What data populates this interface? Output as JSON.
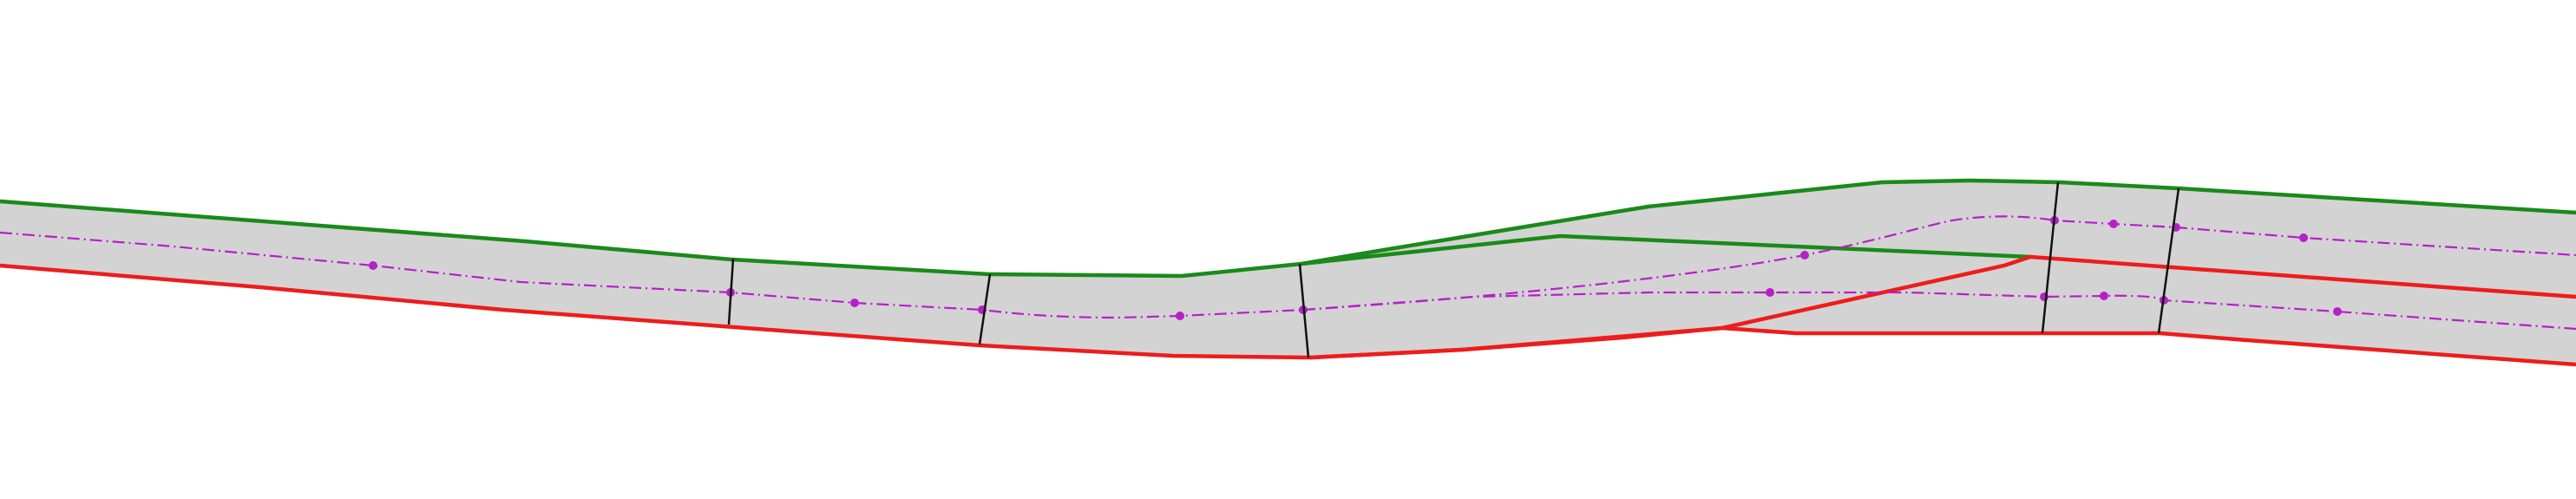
{
  "diagram": {
    "kind": "road lane map",
    "background_color": "#ffffff",
    "road_fill_color": "#d3d3d3",
    "left_boundary_color": "#1a8a1a",
    "right_boundary_color": "#ee1c1c",
    "centerline_color": "#b620c8",
    "section_divider_color": "#111111",
    "elements": {
      "road_surface": "road-surface",
      "left_boundaries": [
        "main-left-boundary",
        "merge-lane-left-boundary"
      ],
      "right_boundaries": [
        "main-right-boundary",
        "diverge-lane-right-boundary"
      ],
      "centerlines": [
        "main-lane-centerline",
        "upper-lane-centerline",
        "lower-lane-centerline"
      ],
      "section_dividers": 6
    }
  }
}
